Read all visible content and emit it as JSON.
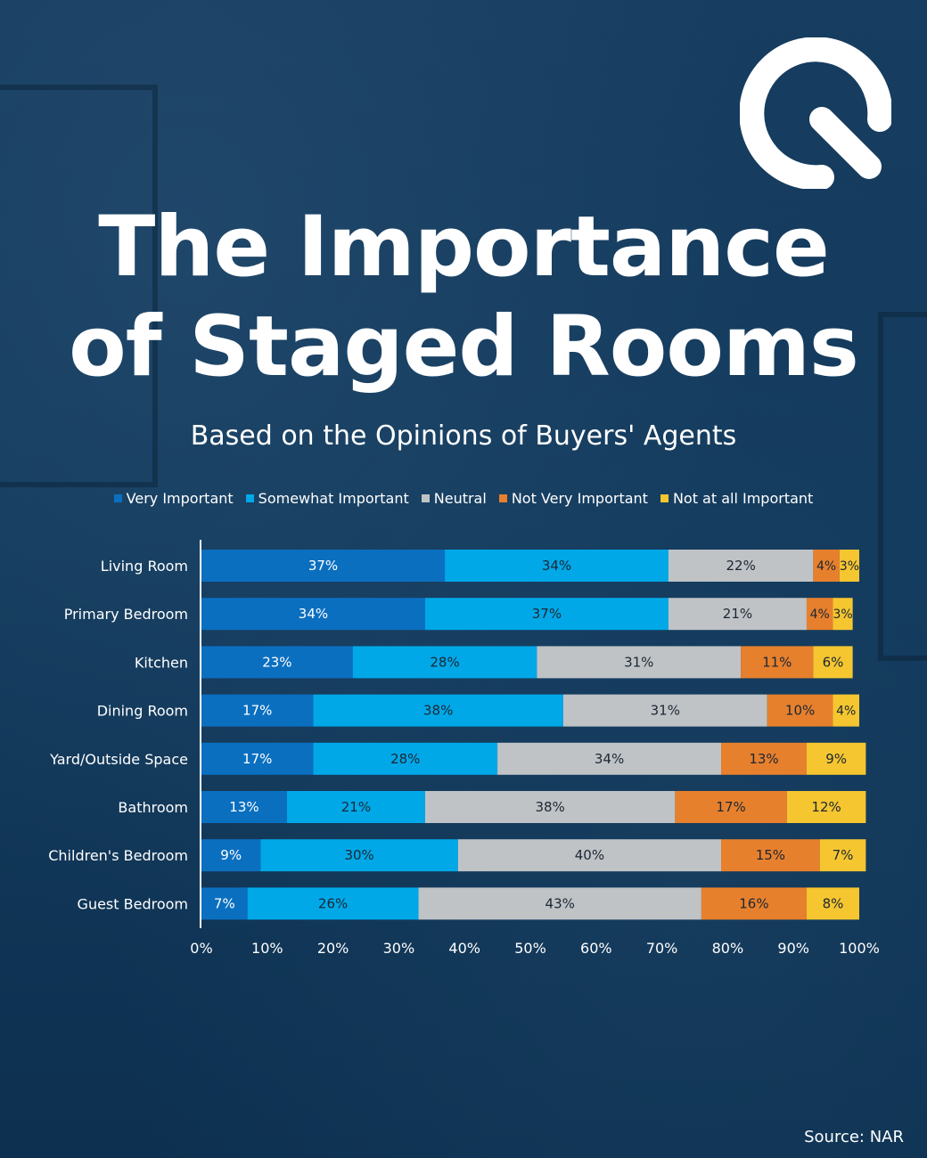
{
  "header": {
    "title_line1": "The Importance",
    "title_line2": "of Staged Rooms",
    "subtitle": "Based on the Opinions of Buyers' Agents"
  },
  "logo": {
    "icon": "q-logo-icon",
    "color": "#ffffff"
  },
  "footer": {
    "source": "Source: NAR"
  },
  "colors": {
    "background": "#0f3456",
    "very_important": "#0b6fc0",
    "somewhat_important": "#00a8e8",
    "neutral": "#bfc3c6",
    "not_very_important": "#e7802d",
    "not_at_all_important": "#f5c630"
  },
  "chart_data": {
    "type": "bar",
    "orientation": "horizontal",
    "stacked": true,
    "categories": [
      "Living Room",
      "Primary Bedroom",
      "Kitchen",
      "Dining Room",
      "Yard/Outside Space",
      "Bathroom",
      "Children's Bedroom",
      "Guest Bedroom"
    ],
    "series": [
      {
        "name": "Very Important",
        "color": "#0b6fc0",
        "values": [
          37,
          34,
          23,
          17,
          17,
          13,
          9,
          7
        ]
      },
      {
        "name": "Somewhat Important",
        "color": "#00a8e8",
        "values": [
          34,
          37,
          28,
          38,
          28,
          21,
          30,
          26
        ]
      },
      {
        "name": "Neutral",
        "color": "#bfc3c6",
        "values": [
          22,
          21,
          31,
          31,
          34,
          38,
          40,
          43
        ]
      },
      {
        "name": "Not Very Important",
        "color": "#e7802d",
        "values": [
          4,
          4,
          11,
          10,
          13,
          17,
          15,
          16
        ]
      },
      {
        "name": "Not at all Important",
        "color": "#f5c630",
        "values": [
          3,
          3,
          6,
          4,
          9,
          12,
          7,
          8
        ]
      }
    ],
    "xlim": [
      0,
      100
    ],
    "xticks": [
      "0%",
      "10%",
      "20%",
      "30%",
      "40%",
      "50%",
      "60%",
      "70%",
      "80%",
      "90%",
      "100%"
    ],
    "unit": "%",
    "legend_position": "top",
    "grid": false
  }
}
